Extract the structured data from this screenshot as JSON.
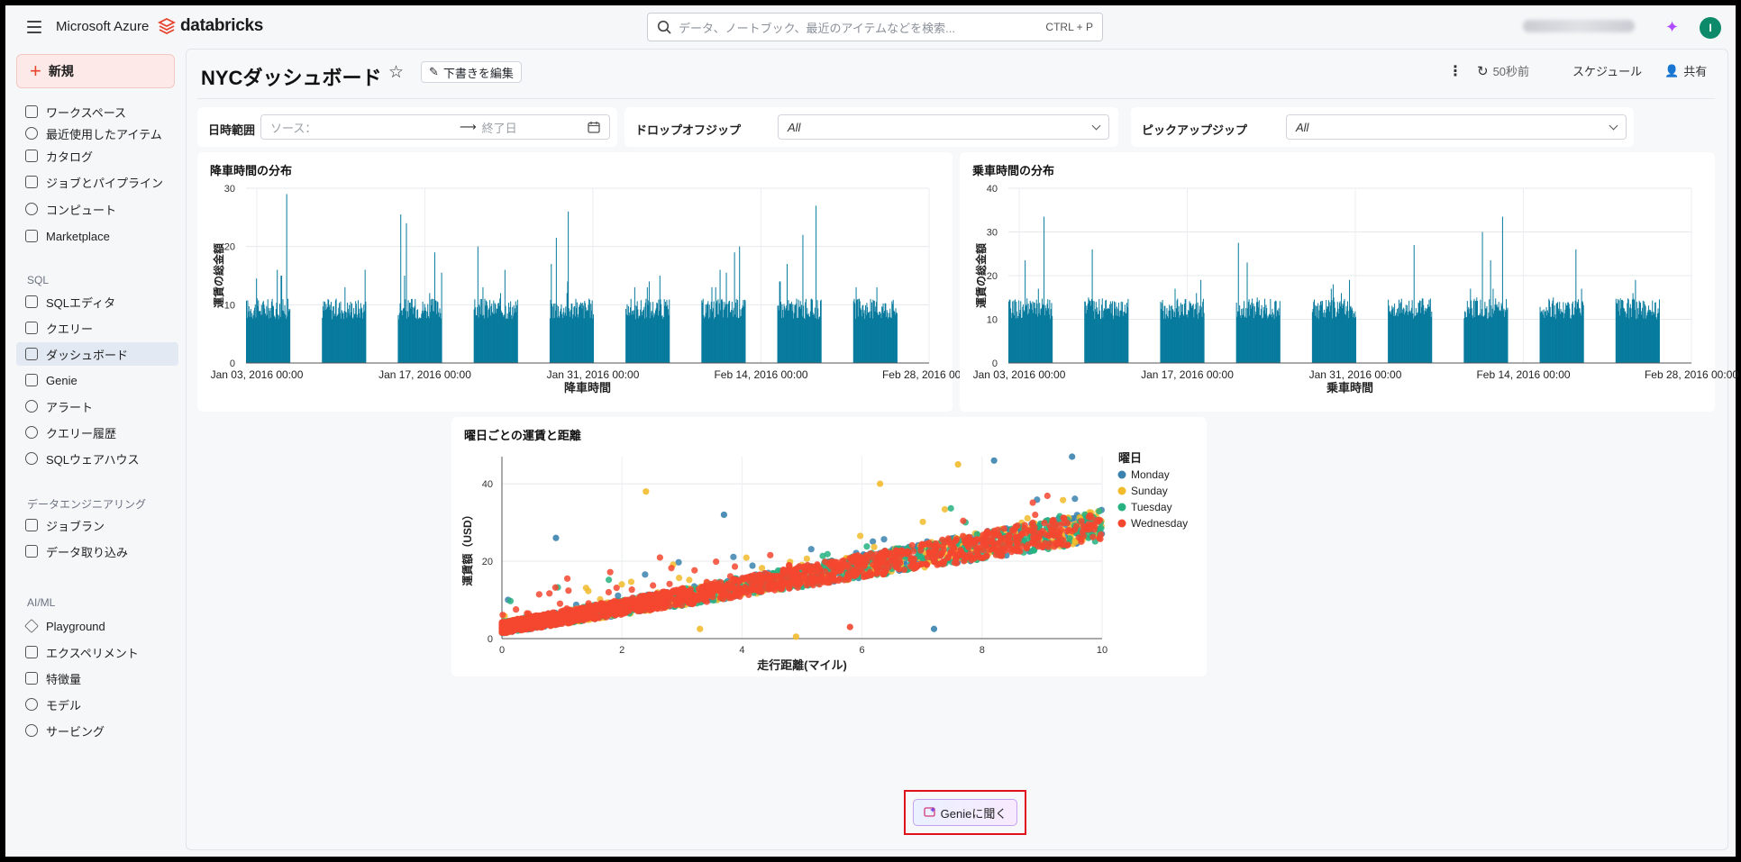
{
  "topbar": {
    "menu_icon": "hamburger-icon",
    "azure_label": "Microsoft Azure",
    "databricks_label": "databricks",
    "search_placeholder": "データ、ノートブック、最近のアイテムなどを検索...",
    "search_shortcut": "CTRL + P",
    "avatar_initial": "I"
  },
  "sidebar": {
    "new_label": "新規",
    "items": [
      {
        "label": "ワークスペース",
        "icon": "folder-icon"
      },
      {
        "label": "最近使用したアイテム",
        "icon": "clock-icon"
      },
      {
        "label": "カタログ",
        "icon": "catalog-icon"
      },
      {
        "label": "ジョブとパイプライン",
        "icon": "jobs-icon"
      },
      {
        "label": "コンピュート",
        "icon": "cloud-icon"
      },
      {
        "label": "Marketplace",
        "icon": "store-icon"
      }
    ],
    "sql_section": "SQL",
    "sql_items": [
      {
        "label": "SQLエディタ",
        "icon": "sql-editor-icon"
      },
      {
        "label": "クエリー",
        "icon": "query-icon"
      },
      {
        "label": "ダッシュボード",
        "icon": "dashboard-icon"
      },
      {
        "label": "Genie",
        "icon": "genie-icon"
      },
      {
        "label": "アラート",
        "icon": "bell-icon"
      },
      {
        "label": "クエリー履歴",
        "icon": "history-icon"
      },
      {
        "label": "SQLウェアハウス",
        "icon": "warehouse-icon"
      }
    ],
    "de_section": "データエンジニアリング",
    "de_items": [
      {
        "label": "ジョブラン",
        "icon": "job-runs-icon"
      },
      {
        "label": "データ取り込み",
        "icon": "ingest-icon"
      }
    ],
    "ai_section": "AI/ML",
    "ai_items": [
      {
        "label": "Playground",
        "icon": "playground-icon"
      },
      {
        "label": "エクスペリメント",
        "icon": "experiment-icon"
      },
      {
        "label": "特徴量",
        "icon": "feature-icon"
      },
      {
        "label": "モデル",
        "icon": "model-icon"
      },
      {
        "label": "サービング",
        "icon": "serving-icon"
      }
    ]
  },
  "dashboard": {
    "title": "NYCダッシュボード",
    "edit_label": "下書きを編集",
    "refresh_label": "50秒前",
    "schedule_label": "スケジュール",
    "share_label": "共有"
  },
  "filters": {
    "date_label": "日時範囲",
    "date_start_placeholder": "ソース：",
    "date_end_placeholder": "終了日",
    "dropoff_label": "ドロップオフジップ",
    "dropoff_value": "All",
    "pickup_label": "ピックアップジップ",
    "pickup_value": "All"
  },
  "chart_data": [
    {
      "type": "bar",
      "title": "降車時間の分布",
      "xlabel": "降車時間",
      "ylabel": "運賃の総金額",
      "x_ticks": [
        "Jan 03, 2016 00:00",
        "Jan 17, 2016 00:00",
        "Jan 31, 2016 00:00",
        "Feb 14, 2016 00:00",
        "Feb 28, 2016 00:00"
      ],
      "ylim": [
        0,
        30
      ],
      "y_ticks": [
        0,
        10,
        20,
        30
      ],
      "grid": true,
      "color": "#077a9d",
      "series_peaks": [
        14.5,
        16,
        15,
        15,
        29,
        11,
        13,
        16,
        25.5,
        15,
        24,
        11,
        12,
        19,
        15.5,
        20,
        13,
        12,
        16,
        17,
        21.5,
        12,
        14,
        26,
        13,
        13,
        14,
        15,
        13,
        13,
        16,
        15.5,
        19,
        20,
        14,
        14,
        17,
        22,
        27,
        13,
        11,
        13,
        17
      ]
    },
    {
      "type": "bar",
      "title": "乗車時間の分布",
      "xlabel": "乗車時間",
      "ylabel": "運賃の総金額",
      "x_ticks": [
        "Jan 03, 2016 00:00",
        "Jan 17, 2016 00:00",
        "Jan 31, 2016 00:00",
        "Feb 14, 2016 00:00",
        "Feb 28, 2016 00:00"
      ],
      "ylim": [
        0,
        40
      ],
      "y_ticks": [
        0,
        10,
        20,
        30,
        40
      ],
      "grid": true,
      "color": "#077a9d",
      "series_peaks": [
        23.5,
        17,
        33.5,
        12,
        15,
        26,
        14,
        17,
        16,
        19,
        14,
        27.5,
        23,
        15,
        14,
        17,
        18,
        15,
        14,
        16,
        19,
        27,
        17,
        15,
        14.5,
        30,
        14,
        13
      ]
    },
    {
      "type": "scatter",
      "title": "曜日ごとの運賃と距離",
      "xlabel": "走行距離(マイル)",
      "ylabel": "運賃額（USD）",
      "xlim": [
        0,
        10
      ],
      "ylim": [
        0,
        47
      ],
      "x_ticks": [
        0,
        2,
        4,
        6,
        8,
        10
      ],
      "y_ticks": [
        0,
        20,
        40
      ],
      "legend_title": "曜日",
      "legend_position": "right",
      "series": [
        {
          "name": "Monday",
          "color": "#3a83ae"
        },
        {
          "name": "Sunday",
          "color": "#f2bb2c"
        },
        {
          "name": "Tuesday",
          "color": "#27b181"
        },
        {
          "name": "Wednesday",
          "color": "#f5472f"
        }
      ],
      "notable_points": [
        {
          "x": 8.2,
          "y": 46,
          "series": "Monday"
        },
        {
          "x": 9.5,
          "y": 47,
          "series": "Monday"
        },
        {
          "x": 7.6,
          "y": 45,
          "series": "Sunday"
        },
        {
          "x": 2.4,
          "y": 38,
          "series": "Sunday"
        },
        {
          "x": 6.3,
          "y": 40,
          "series": "Sunday"
        },
        {
          "x": 3.7,
          "y": 32,
          "series": "Monday"
        },
        {
          "x": 0.9,
          "y": 26,
          "series": "Monday"
        },
        {
          "x": 4.9,
          "y": 0.5,
          "series": "Sunday"
        },
        {
          "x": 3.3,
          "y": 2.5,
          "series": "Sunday"
        },
        {
          "x": 7.2,
          "y": 2.5,
          "series": "Monday"
        },
        {
          "x": 5.8,
          "y": 3,
          "series": "Wednesday"
        }
      ]
    }
  ],
  "genie": {
    "label": "Genieに聞く",
    "icon": "genie-chat-icon"
  }
}
